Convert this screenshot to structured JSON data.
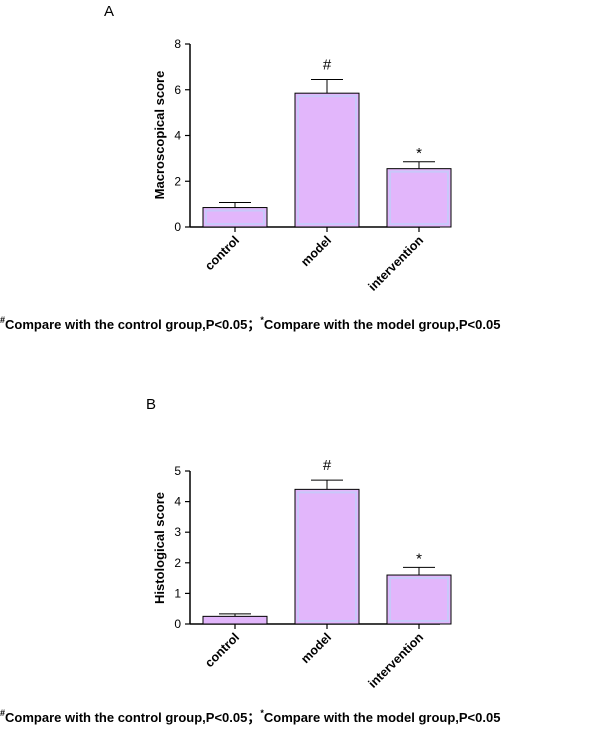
{
  "colors": {
    "bar_fill": "#e2b6fb",
    "bar_inner": "#c8c8fa",
    "axis": "#000000"
  },
  "chart_data": [
    {
      "type": "bar",
      "panel": "A",
      "ylabel": "Macroscopical score",
      "ylim": [
        0,
        8
      ],
      "yticks": [
        0,
        2,
        4,
        6,
        8
      ],
      "categories": [
        "control",
        "model",
        "intervention"
      ],
      "values": [
        0.85,
        5.85,
        2.55
      ],
      "errors": [
        0.22,
        0.6,
        0.3
      ],
      "annotations": [
        "",
        "#",
        "*"
      ],
      "footnote": {
        "mark1": "#",
        "text1": "Compare with the control group,P<0.05；",
        "mark2": "*",
        "text2": "Compare with the model group,P<0.05"
      }
    },
    {
      "type": "bar",
      "panel": "B",
      "ylabel": "Histological score",
      "ylim": [
        0,
        5
      ],
      "yticks": [
        0,
        1,
        2,
        3,
        4,
        5
      ],
      "categories": [
        "control",
        "model",
        "intervention"
      ],
      "values": [
        0.25,
        4.4,
        1.6
      ],
      "errors": [
        0.08,
        0.3,
        0.25
      ],
      "annotations": [
        "",
        "#",
        "*"
      ],
      "footnote": {
        "mark1": "#",
        "text1": "Compare with the control group,P<0.05；",
        "mark2": "*",
        "text2": "Compare with the model group,P<0.05"
      }
    }
  ]
}
